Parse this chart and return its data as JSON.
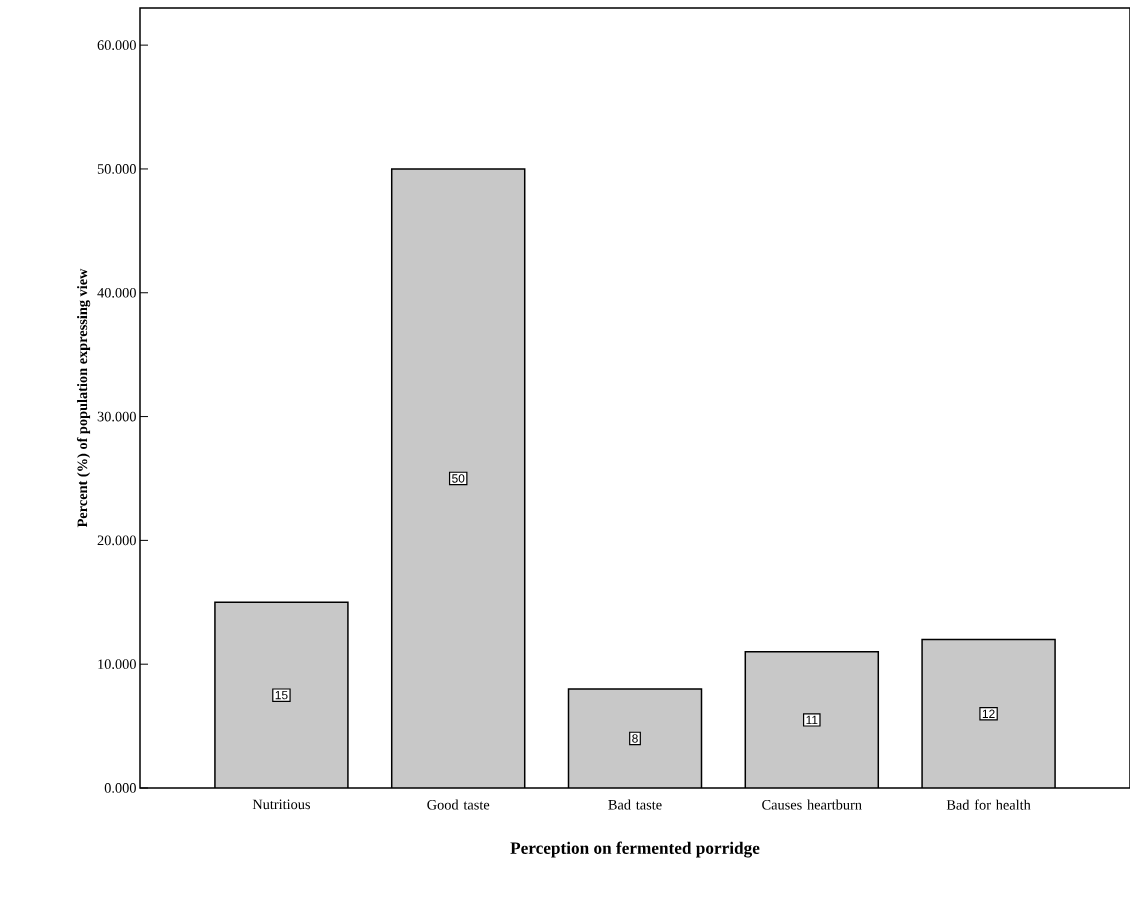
{
  "chart_data": {
    "type": "bar",
    "xlabel": "Perception on fermented porridge",
    "ylabel": "Percent (%) of population expressing view",
    "categories": [
      "Nutritious",
      "Good taste",
      "Bad taste",
      "Causes heartburn",
      "Bad for health"
    ],
    "values": [
      15,
      50,
      8,
      11,
      12
    ],
    "color": "#c8c8c8",
    "data_labels": true,
    "ylim": [
      0,
      63
    ],
    "yticks": [
      {
        "value": 0,
        "label": "0.000"
      },
      {
        "value": 10,
        "label": "10.000"
      },
      {
        "value": 20,
        "label": "20.000"
      },
      {
        "value": 30,
        "label": "30.000"
      },
      {
        "value": 40,
        "label": "40.000"
      },
      {
        "value": 50,
        "label": "50.000"
      },
      {
        "value": 60,
        "label": "60.000"
      }
    ]
  }
}
